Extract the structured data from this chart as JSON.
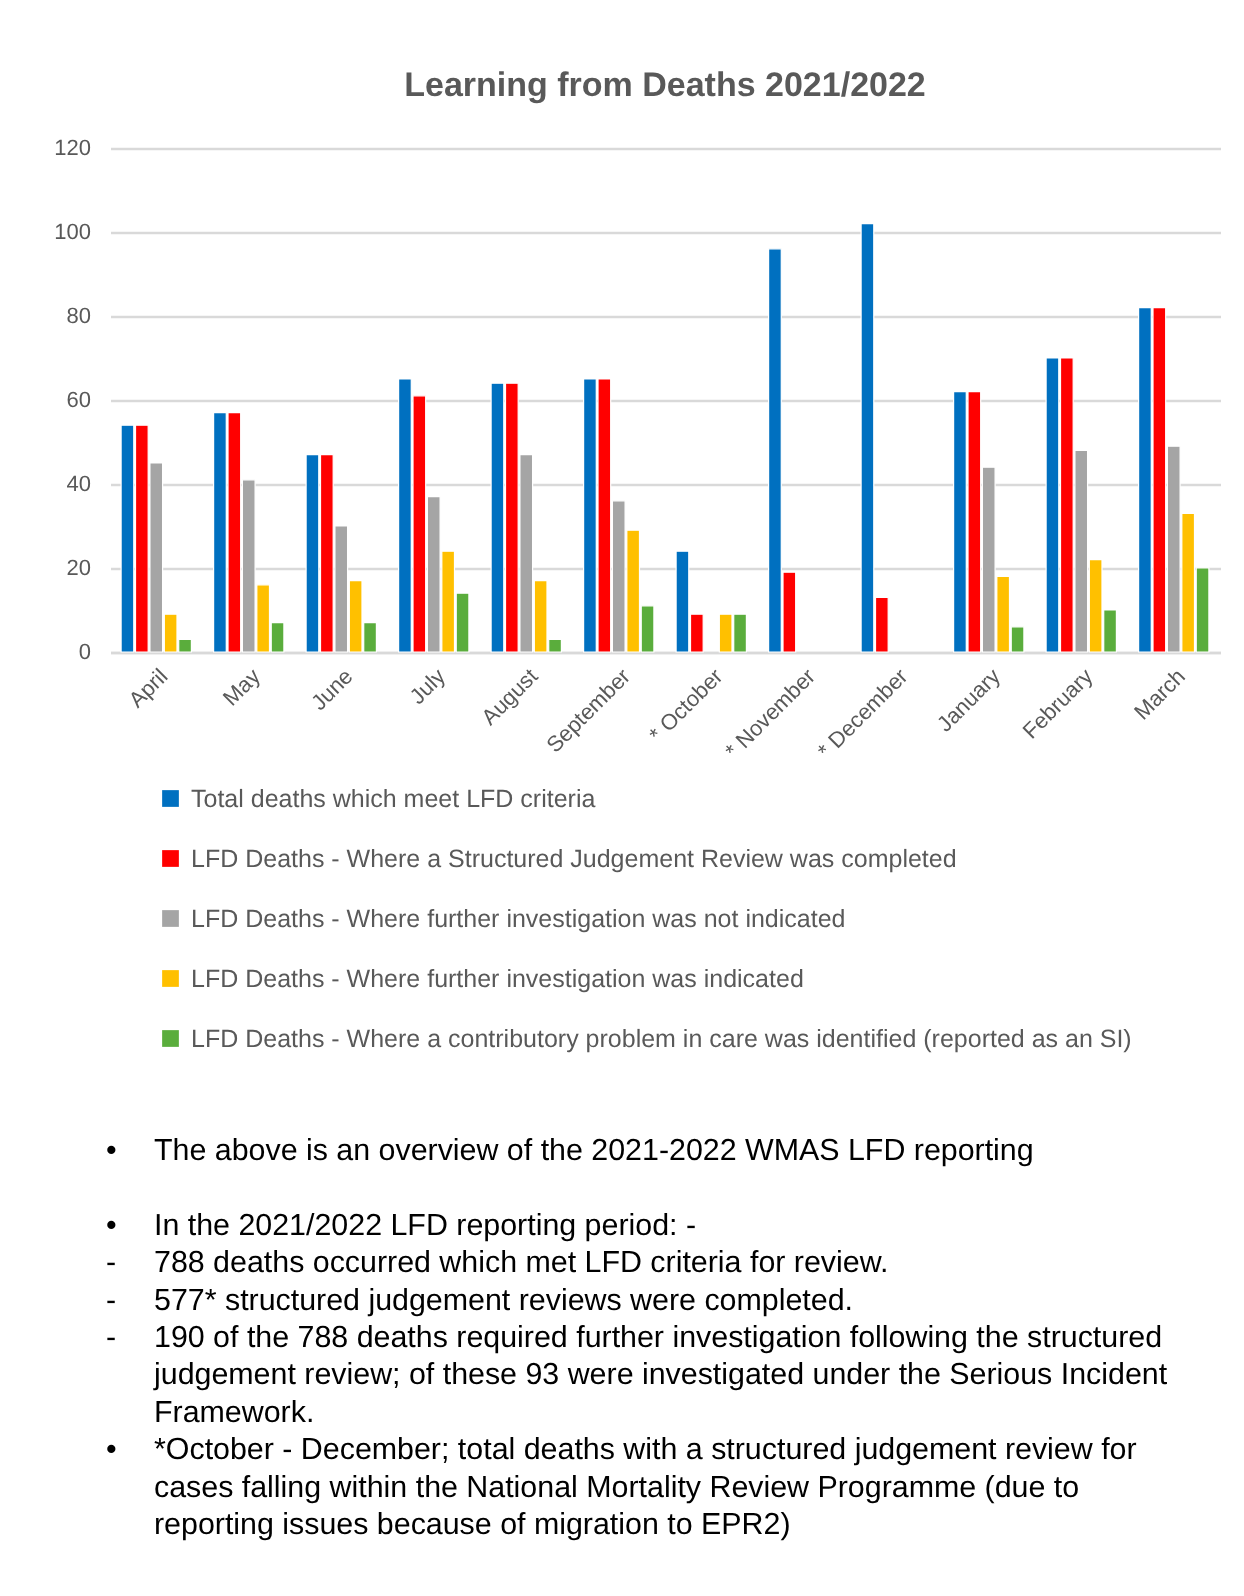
{
  "chart_data": {
    "type": "bar",
    "title": "Learning from Deaths 2021/2022",
    "categories": [
      "April",
      "May",
      "June",
      "July",
      "August",
      "September",
      "* October",
      "* November",
      "* December",
      "January",
      "February",
      "March"
    ],
    "series": [
      {
        "name": "Total deaths which meet LFD criteria",
        "color": "#0070c0",
        "values": [
          54,
          57,
          47,
          65,
          64,
          65,
          24,
          96,
          102,
          62,
          70,
          82
        ]
      },
      {
        "name": "LFD Deaths - Where a Structured Judgement Review was completed",
        "color": "#ff0000",
        "values": [
          54,
          57,
          47,
          61,
          64,
          65,
          9,
          19,
          13,
          62,
          70,
          82
        ]
      },
      {
        "name": "LFD Deaths - Where further investigation was not indicated",
        "color": "#a5a5a5",
        "values": [
          45,
          41,
          30,
          37,
          47,
          36,
          null,
          null,
          null,
          44,
          48,
          49
        ]
      },
      {
        "name": "LFD Deaths - Where further investigation was indicated",
        "color": "#ffc000",
        "values": [
          9,
          16,
          17,
          24,
          17,
          29,
          9,
          null,
          null,
          18,
          22,
          33
        ]
      },
      {
        "name": "LFD Deaths - Where a contributory problem in care was identified (reported as an SI)",
        "color": "#5aad3c",
        "values": [
          3,
          7,
          7,
          14,
          3,
          11,
          9,
          null,
          null,
          6,
          10,
          20
        ]
      }
    ],
    "ylim": [
      0,
      120
    ],
    "yticks": [
      0,
      20,
      40,
      60,
      80,
      100,
      120
    ],
    "grid": "y",
    "legend": "bottom",
    "annotations": [
      "• The above is an overview of the 2021-2022 WMAS LFD reporting",
      "• In the 2021/2022 LFD reporting period: -",
      "- 788 deaths occurred which met LFD criteria for review.",
      "- 577* structured judgement reviews were completed.",
      "- 190 of the 788 deaths required further investigation following the structured judgement review; of these 93 were investigated under the Serious Incident Framework.",
      "• *October - December; total deaths with a structured judgement review for cases falling within the National Mortality Review Programme (due to reporting issues because of migration to EPR2)"
    ]
  }
}
